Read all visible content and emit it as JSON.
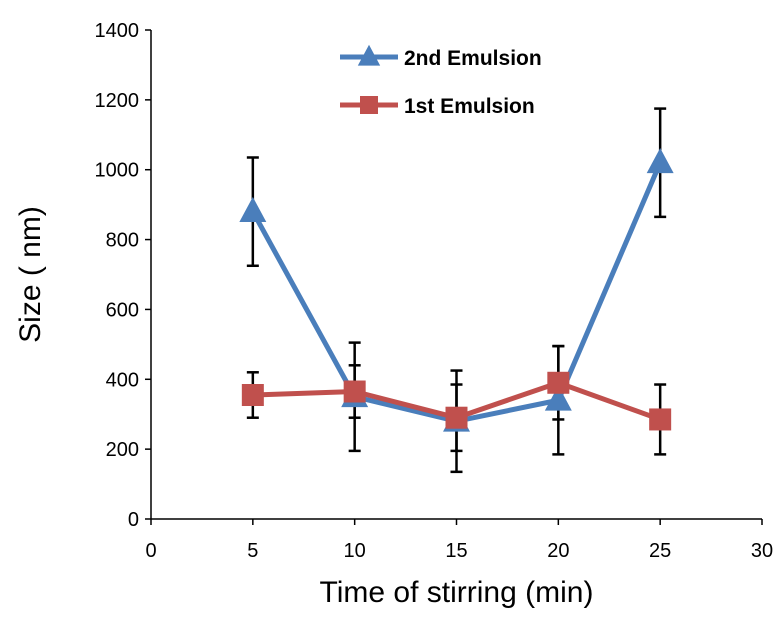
{
  "chart_data": {
    "type": "line",
    "title": "",
    "xlabel": "Time of stirring (min)",
    "ylabel": "Size ( nm)",
    "xlim": [
      0,
      30
    ],
    "ylim": [
      0,
      1400
    ],
    "xticks": [
      0,
      5,
      10,
      15,
      20,
      25,
      30
    ],
    "yticks": [
      0,
      200,
      400,
      600,
      800,
      1000,
      1200,
      1400
    ],
    "grid": false,
    "legend_position": "top-center",
    "series": [
      {
        "name": "2nd Emulsion",
        "marker": "triangle",
        "color": "#4a7ebb",
        "x": [
          5,
          10,
          15,
          20,
          25
        ],
        "y": [
          880,
          350,
          280,
          340,
          1020
        ],
        "error": [
          155,
          155,
          145,
          155,
          155
        ]
      },
      {
        "name": "1st Emulsion",
        "marker": "square",
        "color": "#c0504d",
        "x": [
          5,
          10,
          15,
          20,
          25
        ],
        "y": [
          355,
          365,
          290,
          390,
          285
        ],
        "error": [
          65,
          75,
          95,
          105,
          100
        ]
      }
    ]
  }
}
